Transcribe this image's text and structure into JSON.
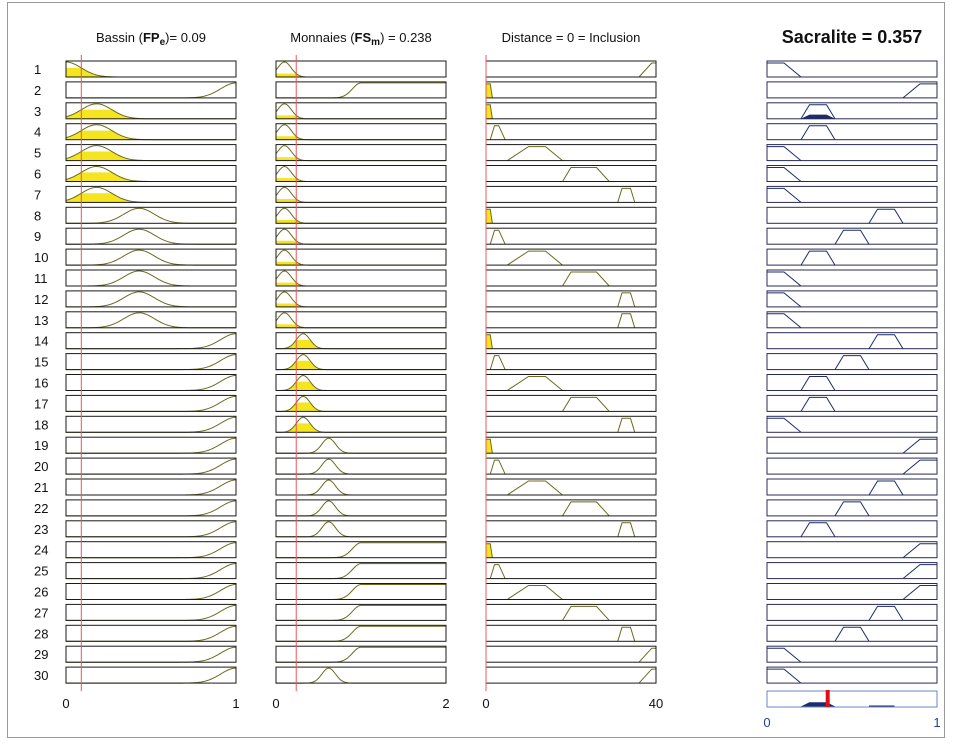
{
  "chart_data": {
    "type": "fuzzy-rule-viewer",
    "rule_numbers": [
      "1",
      "2",
      "3",
      "4",
      "5",
      "6",
      "7",
      "8",
      "9",
      "10",
      "11",
      "12",
      "13",
      "14",
      "15",
      "16",
      "17",
      "18",
      "19",
      "20",
      "21",
      "22",
      "23",
      "24",
      "25",
      "26",
      "27",
      "28",
      "29",
      "30"
    ],
    "inputs": [
      {
        "title_pre": "Bassin (",
        "title_bold": "FP",
        "title_sub": "e",
        "title_post": ")= 0.09",
        "range": [
          0,
          1
        ],
        "tick_labels": [
          "0",
          "1"
        ],
        "input_value": 0.09,
        "mf_shape": "gaussian",
        "mf_params": [
          {
            "center": 0.0,
            "sigma": 0.09,
            "fired": true
          },
          {
            "center": 1.0,
            "sigma": 0.09,
            "fired": false
          },
          {
            "center": 0.18,
            "sigma": 0.09,
            "fired": true
          },
          {
            "center": 0.18,
            "sigma": 0.09,
            "fired": true
          },
          {
            "center": 0.18,
            "sigma": 0.09,
            "fired": true
          },
          {
            "center": 0.18,
            "sigma": 0.09,
            "fired": true
          },
          {
            "center": 0.18,
            "sigma": 0.09,
            "fired": true
          },
          {
            "center": 0.43,
            "sigma": 0.09,
            "fired": false
          },
          {
            "center": 0.43,
            "sigma": 0.09,
            "fired": false
          },
          {
            "center": 0.43,
            "sigma": 0.09,
            "fired": false
          },
          {
            "center": 0.43,
            "sigma": 0.09,
            "fired": false
          },
          {
            "center": 0.43,
            "sigma": 0.09,
            "fired": false
          },
          {
            "center": 0.43,
            "sigma": 0.09,
            "fired": false
          },
          {
            "center": 1.0,
            "sigma": 0.09,
            "fired": false
          },
          {
            "center": 1.0,
            "sigma": 0.09,
            "fired": false
          },
          {
            "center": 1.0,
            "sigma": 0.09,
            "fired": false
          },
          {
            "center": 1.0,
            "sigma": 0.09,
            "fired": false
          },
          {
            "center": 1.0,
            "sigma": 0.09,
            "fired": false
          },
          {
            "center": 1.0,
            "sigma": 0.09,
            "fired": false
          },
          {
            "center": 1.0,
            "sigma": 0.09,
            "fired": false
          },
          {
            "center": 1.0,
            "sigma": 0.09,
            "fired": false
          },
          {
            "center": 1.0,
            "sigma": 0.09,
            "fired": false
          },
          {
            "center": 1.0,
            "sigma": 0.09,
            "fired": false
          },
          {
            "center": 1.0,
            "sigma": 0.09,
            "fired": false
          },
          {
            "center": 1.0,
            "sigma": 0.09,
            "fired": false
          },
          {
            "center": 1.0,
            "sigma": 0.09,
            "fired": false
          },
          {
            "center": 1.0,
            "sigma": 0.09,
            "fired": false
          },
          {
            "center": 1.0,
            "sigma": 0.09,
            "fired": false
          },
          {
            "center": 1.0,
            "sigma": 0.09,
            "fired": false
          },
          {
            "center": 1.0,
            "sigma": 0.09,
            "fired": false
          }
        ]
      },
      {
        "title_pre": "Monnaies (",
        "title_bold": "FS",
        "title_sub": "m",
        "title_post": ") = 0.238",
        "range": [
          0,
          2
        ],
        "tick_labels": [
          "0",
          "2"
        ],
        "input_value": 0.238,
        "mf_shape": "gaussian",
        "mf_params": [
          {
            "center": 0.1,
            "sigma": 0.08,
            "fired": true
          },
          {
            "center": 1.0,
            "sigma": 0.1,
            "shoulder": "right",
            "fired": false
          },
          {
            "center": 0.1,
            "sigma": 0.08,
            "fired": true
          },
          {
            "center": 0.1,
            "sigma": 0.08,
            "fired": true
          },
          {
            "center": 0.1,
            "sigma": 0.08,
            "fired": true
          },
          {
            "center": 0.1,
            "sigma": 0.08,
            "fired": true
          },
          {
            "center": 0.1,
            "sigma": 0.08,
            "fired": true
          },
          {
            "center": 0.1,
            "sigma": 0.08,
            "fired": true
          },
          {
            "center": 0.1,
            "sigma": 0.08,
            "fired": true
          },
          {
            "center": 0.1,
            "sigma": 0.08,
            "fired": true
          },
          {
            "center": 0.1,
            "sigma": 0.08,
            "fired": true
          },
          {
            "center": 0.1,
            "sigma": 0.08,
            "fired": true
          },
          {
            "center": 0.1,
            "sigma": 0.08,
            "fired": true
          },
          {
            "center": 0.32,
            "sigma": 0.08,
            "fired": true
          },
          {
            "center": 0.32,
            "sigma": 0.08,
            "fired": true
          },
          {
            "center": 0.32,
            "sigma": 0.08,
            "fired": true
          },
          {
            "center": 0.32,
            "sigma": 0.08,
            "fired": true
          },
          {
            "center": 0.32,
            "sigma": 0.08,
            "fired": true
          },
          {
            "center": 0.62,
            "sigma": 0.08,
            "fired": false
          },
          {
            "center": 0.62,
            "sigma": 0.08,
            "fired": false
          },
          {
            "center": 0.62,
            "sigma": 0.08,
            "fired": false
          },
          {
            "center": 0.62,
            "sigma": 0.08,
            "fired": false
          },
          {
            "center": 0.62,
            "sigma": 0.08,
            "fired": false
          },
          {
            "center": 1.0,
            "sigma": 0.1,
            "shoulder": "right",
            "fired": false
          },
          {
            "center": 1.0,
            "sigma": 0.1,
            "shoulder": "right",
            "fired": false
          },
          {
            "center": 1.0,
            "sigma": 0.1,
            "shoulder": "right",
            "fired": false
          },
          {
            "center": 1.0,
            "sigma": 0.1,
            "shoulder": "right",
            "fired": false
          },
          {
            "center": 1.0,
            "sigma": 0.1,
            "shoulder": "right",
            "fired": false
          },
          {
            "center": 1.0,
            "sigma": 0.1,
            "shoulder": "right",
            "fired": false
          },
          {
            "center": 0.62,
            "sigma": 0.08,
            "fired": false
          }
        ]
      },
      {
        "title_pre": "Distance = 0 = Inclusion",
        "title_bold": "",
        "title_sub": "",
        "title_post": "",
        "range": [
          0,
          40
        ],
        "tick_labels": [
          "0",
          "40"
        ],
        "input_value": 0,
        "mf_shape": "trapezoid",
        "mf_params": [
          {
            "points": [
              36,
              39,
              40,
              40
            ],
            "fired": false
          },
          {
            "points": [
              0,
              0,
              1,
              1.5
            ],
            "fired": true
          },
          {
            "points": [
              0,
              0,
              1,
              1.5
            ],
            "fired": true
          },
          {
            "points": [
              1,
              2,
              3,
              4.5
            ],
            "fired": false
          },
          {
            "points": [
              5,
              10,
              14,
              18
            ],
            "fired": false
          },
          {
            "points": [
              18,
              20,
              26,
              29
            ],
            "fired": false
          },
          {
            "points": [
              31,
              32,
              34,
              35
            ],
            "fired": false
          },
          {
            "points": [
              0,
              0,
              1,
              1.5
            ],
            "fired": true
          },
          {
            "points": [
              1,
              2,
              3,
              4.5
            ],
            "fired": false
          },
          {
            "points": [
              5,
              10,
              14,
              18
            ],
            "fired": false
          },
          {
            "points": [
              18,
              20,
              26,
              29
            ],
            "fired": false
          },
          {
            "points": [
              31,
              32,
              34,
              35
            ],
            "fired": false
          },
          {
            "points": [
              31,
              32,
              34,
              35
            ],
            "fired": false
          },
          {
            "points": [
              0,
              0,
              1,
              1.5
            ],
            "fired": true
          },
          {
            "points": [
              1,
              2,
              3,
              4.5
            ],
            "fired": false
          },
          {
            "points": [
              5,
              10,
              14,
              18
            ],
            "fired": false
          },
          {
            "points": [
              18,
              20,
              26,
              29
            ],
            "fired": false
          },
          {
            "points": [
              31,
              32,
              34,
              35
            ],
            "fired": false
          },
          {
            "points": [
              0,
              0,
              1,
              1.5
            ],
            "fired": true
          },
          {
            "points": [
              1,
              2,
              3,
              4.5
            ],
            "fired": false
          },
          {
            "points": [
              5,
              10,
              14,
              18
            ],
            "fired": false
          },
          {
            "points": [
              18,
              20,
              26,
              29
            ],
            "fired": false
          },
          {
            "points": [
              31,
              32,
              34,
              35
            ],
            "fired": false
          },
          {
            "points": [
              0,
              0,
              1,
              1.5
            ],
            "fired": true
          },
          {
            "points": [
              1,
              2,
              3,
              4.5
            ],
            "fired": false
          },
          {
            "points": [
              5,
              10,
              14,
              18
            ],
            "fired": false
          },
          {
            "points": [
              18,
              20,
              26,
              29
            ],
            "fired": false
          },
          {
            "points": [
              31,
              32,
              34,
              35
            ],
            "fired": false
          },
          {
            "points": [
              36,
              39,
              40,
              40
            ],
            "fired": false
          },
          {
            "points": [
              36,
              39,
              40,
              40
            ],
            "fired": false
          }
        ]
      }
    ],
    "output": {
      "title": "Sacralite = 0.357",
      "range": [
        0,
        1
      ],
      "tick_labels": [
        "0",
        "1"
      ],
      "output_value": 0.357,
      "mf_params": [
        {
          "points": [
            0,
            0,
            0.1,
            0.2
          ],
          "fired_height": 0
        },
        {
          "points": [
            0.8,
            0.9,
            1,
            1
          ],
          "fired_height": 0
        },
        {
          "points": [
            0.2,
            0.25,
            0.35,
            0.4
          ],
          "fired_height": 0.3
        },
        {
          "points": [
            0.2,
            0.25,
            0.35,
            0.4
          ],
          "fired_height": 0
        },
        {
          "points": [
            0,
            0,
            0.1,
            0.2
          ],
          "fired_height": 0
        },
        {
          "points": [
            0,
            0,
            0.1,
            0.2
          ],
          "fired_height": 0
        },
        {
          "points": [
            0,
            0,
            0.1,
            0.2
          ],
          "fired_height": 0
        },
        {
          "points": [
            0.6,
            0.65,
            0.75,
            0.8
          ],
          "fired_height": 0
        },
        {
          "points": [
            0.4,
            0.45,
            0.55,
            0.6
          ],
          "fired_height": 0
        },
        {
          "points": [
            0.2,
            0.25,
            0.35,
            0.4
          ],
          "fired_height": 0
        },
        {
          "points": [
            0,
            0,
            0.1,
            0.2
          ],
          "fired_height": 0
        },
        {
          "points": [
            0,
            0,
            0.1,
            0.2
          ],
          "fired_height": 0
        },
        {
          "points": [
            0,
            0,
            0.1,
            0.2
          ],
          "fired_height": 0
        },
        {
          "points": [
            0.6,
            0.65,
            0.75,
            0.8
          ],
          "fired_height": 0
        },
        {
          "points": [
            0.4,
            0.45,
            0.55,
            0.6
          ],
          "fired_height": 0
        },
        {
          "points": [
            0.2,
            0.25,
            0.35,
            0.4
          ],
          "fired_height": 0
        },
        {
          "points": [
            0.2,
            0.25,
            0.35,
            0.4
          ],
          "fired_height": 0
        },
        {
          "points": [
            0,
            0,
            0.1,
            0.2
          ],
          "fired_height": 0
        },
        {
          "points": [
            0.8,
            0.9,
            1,
            1
          ],
          "fired_height": 0
        },
        {
          "points": [
            0.8,
            0.9,
            1,
            1
          ],
          "fired_height": 0
        },
        {
          "points": [
            0.6,
            0.65,
            0.75,
            0.8
          ],
          "fired_height": 0
        },
        {
          "points": [
            0.4,
            0.45,
            0.55,
            0.6
          ],
          "fired_height": 0
        },
        {
          "points": [
            0.2,
            0.25,
            0.35,
            0.4
          ],
          "fired_height": 0
        },
        {
          "points": [
            0.8,
            0.9,
            1,
            1
          ],
          "fired_height": 0
        },
        {
          "points": [
            0.8,
            0.9,
            1,
            1
          ],
          "fired_height": 0
        },
        {
          "points": [
            0.8,
            0.9,
            1,
            1
          ],
          "fired_height": 0
        },
        {
          "points": [
            0.6,
            0.65,
            0.75,
            0.8
          ],
          "fired_height": 0
        },
        {
          "points": [
            0.4,
            0.45,
            0.55,
            0.6
          ],
          "fired_height": 0
        },
        {
          "points": [
            0,
            0,
            0.1,
            0.2
          ],
          "fired_height": 0
        },
        {
          "points": [
            0,
            0,
            0.1,
            0.2
          ],
          "fired_height": 0
        }
      ],
      "aggregate_fired_height": 0.3
    },
    "colors": {
      "input_curve": "#6b6b1e",
      "fired_fill": "#f5e51e",
      "input_line": "#e8585a",
      "output_curve": "#1c2c6c",
      "output_fill": "#1c2c6c",
      "output_result_line": "#e01010",
      "box_border": "#1a1a1a",
      "output_box_border": "#2a2a55",
      "aggregate_border": "#6a86c8",
      "output_tick_color": "#1f3f9f"
    }
  }
}
